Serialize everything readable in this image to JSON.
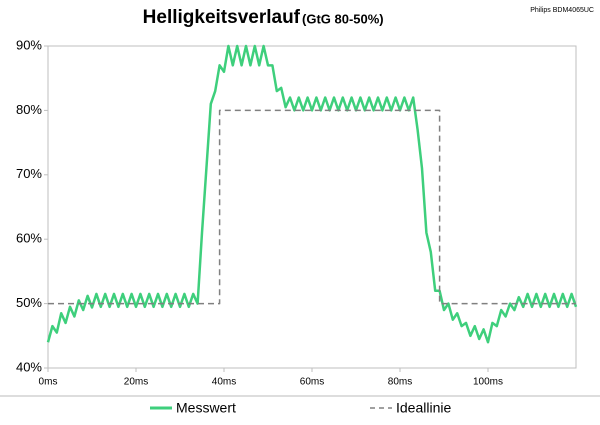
{
  "chart_data": {
    "type": "line",
    "title": "Helligkeitsverlauf",
    "subtitle": "(GtG 80-50%)",
    "annotation": "Philips BDM4065UC",
    "xlim": [
      0,
      120
    ],
    "xticks": [
      {
        "value": 0,
        "label": "0ms"
      },
      {
        "value": 20,
        "label": "20ms"
      },
      {
        "value": 40,
        "label": "40ms"
      },
      {
        "value": 60,
        "label": "60ms"
      },
      {
        "value": 80,
        "label": "80ms"
      },
      {
        "value": 100,
        "label": "100ms"
      }
    ],
    "ylim": [
      40,
      90
    ],
    "yticks": [
      {
        "value": 40,
        "label": "40%"
      },
      {
        "value": 50,
        "label": "50%"
      },
      {
        "value": 60,
        "label": "60%"
      },
      {
        "value": 70,
        "label": "70%"
      },
      {
        "value": 80,
        "label": "80%"
      },
      {
        "value": 90,
        "label": "90%"
      }
    ],
    "grid": false,
    "legend": "bottom",
    "series": [
      {
        "name": "Messwert",
        "color": "#3ecf7c",
        "dashed": false,
        "x": [
          0,
          1,
          2,
          3,
          4,
          5,
          6,
          7,
          8,
          9,
          10,
          11,
          12,
          13,
          14,
          15,
          16,
          17,
          18,
          19,
          20,
          21,
          22,
          23,
          24,
          25,
          26,
          27,
          28,
          29,
          30,
          31,
          32,
          33,
          34,
          35,
          36,
          37,
          38,
          39,
          40,
          41,
          42,
          43,
          44,
          45,
          46,
          47,
          48,
          49,
          50,
          51,
          52,
          53,
          54,
          55,
          56,
          57,
          58,
          59,
          60,
          61,
          62,
          63,
          64,
          65,
          66,
          67,
          68,
          69,
          70,
          71,
          72,
          73,
          74,
          75,
          76,
          77,
          78,
          79,
          80,
          81,
          82,
          83,
          84,
          85,
          86,
          87,
          88,
          89,
          90,
          91,
          92,
          93,
          94,
          95,
          96,
          97,
          98,
          99,
          100,
          101,
          102,
          103,
          104,
          105,
          106,
          107,
          108,
          109,
          110,
          111,
          112,
          113,
          114,
          115,
          116,
          117,
          118,
          119,
          120
        ],
        "values": [
          44,
          46.5,
          45.5,
          48.5,
          47,
          49.5,
          48,
          50.5,
          49,
          51.2,
          49.4,
          51.5,
          49.5,
          51.5,
          49.5,
          51.5,
          49.5,
          51.5,
          49.5,
          51.5,
          49.5,
          51.5,
          49.5,
          51.5,
          49.5,
          51.5,
          49.5,
          51.5,
          49.5,
          51.5,
          49.5,
          51.5,
          49.5,
          51.5,
          50,
          61,
          71,
          81,
          83,
          87,
          86,
          90,
          87,
          90,
          87,
          90,
          87,
          90,
          87,
          90,
          87,
          87,
          83,
          83.5,
          80.5,
          82,
          80,
          82,
          80,
          82,
          80,
          82,
          80,
          82,
          80,
          82,
          80,
          82,
          80,
          82,
          80,
          82,
          80,
          82,
          80,
          82,
          80,
          82,
          80,
          82,
          80,
          82,
          80,
          82,
          77,
          71,
          61,
          58,
          52,
          52,
          49,
          50,
          47.5,
          48.5,
          46.5,
          47,
          45,
          46.5,
          44.5,
          46,
          44,
          47,
          46.5,
          49,
          48,
          50,
          49,
          51,
          49.5,
          51.5,
          49.5,
          51.5,
          49.5,
          51.5,
          49.5,
          51.5,
          49.5,
          51.5,
          49.5,
          51.5,
          49.5
        ]
      },
      {
        "name": "Ideallinie",
        "color": "#808080",
        "dashed": true,
        "x": [
          0,
          39,
          39,
          89,
          89,
          120
        ],
        "values": [
          50,
          50,
          80,
          80,
          50,
          50
        ]
      }
    ]
  }
}
